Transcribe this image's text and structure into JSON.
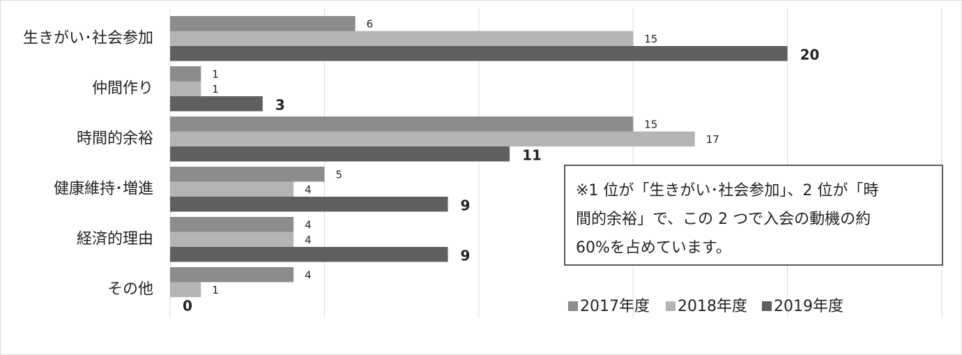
{
  "chart_data": {
    "type": "bar",
    "orientation": "horizontal",
    "categories": [
      "生きがい･社会参加",
      "仲間作り",
      "時間的余裕",
      "健康維持･増進",
      "経済的理由",
      "その他"
    ],
    "series": [
      {
        "name": "2017年度",
        "color": "#8c8c8c",
        "values": [
          6,
          1,
          15,
          5,
          4,
          4
        ]
      },
      {
        "name": "2018年度",
        "color": "#b4b4b4",
        "values": [
          15,
          1,
          17,
          4,
          4,
          1
        ]
      },
      {
        "name": "2019年度",
        "color": "#5f5f5f",
        "values": [
          20,
          3,
          11,
          9,
          9,
          0
        ]
      }
    ],
    "xlim": [
      0,
      25
    ],
    "xticks": [
      0,
      5,
      10,
      15,
      20,
      25
    ],
    "grid": true,
    "legend": "bottom-right",
    "annotation": [
      "※1 位が「生きがい･社会参加」、2 位が「時",
      "間的余裕」で、この 2 つで入会の動機の約",
      "60%を占めています。"
    ]
  }
}
